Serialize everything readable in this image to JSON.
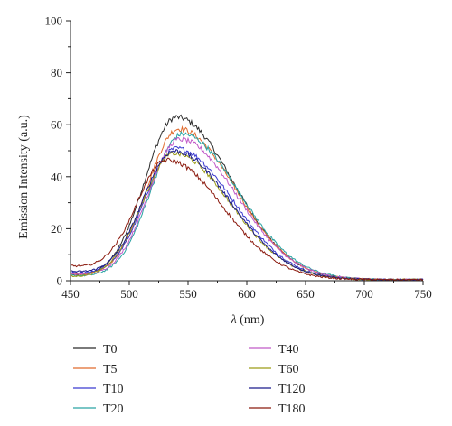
{
  "chart_data": {
    "type": "line",
    "xlabel_symbol": "λ",
    "xlabel_unit": " (nm)",
    "ylabel": "Emission Intensity (a.u.)",
    "xlim": [
      450,
      750
    ],
    "ylim": [
      0,
      100
    ],
    "x_ticks": [
      450,
      500,
      550,
      600,
      650,
      700,
      750
    ],
    "y_ticks": [
      0,
      20,
      40,
      60,
      80,
      100
    ],
    "grid": false,
    "legend_position": "bottom, two columns",
    "series": [
      {
        "name": "T0",
        "color": "#2b2b2b",
        "peak_x": 540,
        "peak_y": 62.5,
        "start_y": 1.5
      },
      {
        "name": "T5",
        "color": "#e06a2c",
        "peak_x": 542,
        "peak_y": 58.0,
        "start_y": 2.0
      },
      {
        "name": "T10",
        "color": "#3b3bd0",
        "peak_x": 540,
        "peak_y": 50.5,
        "start_y": 2.5
      },
      {
        "name": "T20",
        "color": "#2aa3a3",
        "peak_x": 545,
        "peak_y": 56.0,
        "start_y": 1.5
      },
      {
        "name": "T40",
        "color": "#c15ac8",
        "peak_x": 543,
        "peak_y": 54.0,
        "start_y": 2.0
      },
      {
        "name": "T60",
        "color": "#9c9c16",
        "peak_x": 538,
        "peak_y": 48.5,
        "start_y": 1.0
      },
      {
        "name": "T120",
        "color": "#1a1a8c",
        "peak_x": 538,
        "peak_y": 49.5,
        "start_y": 3.0
      },
      {
        "name": "T180",
        "color": "#8b1a0e",
        "peak_x": 532,
        "peak_y": 46.0,
        "start_y": 5.0
      }
    ]
  }
}
